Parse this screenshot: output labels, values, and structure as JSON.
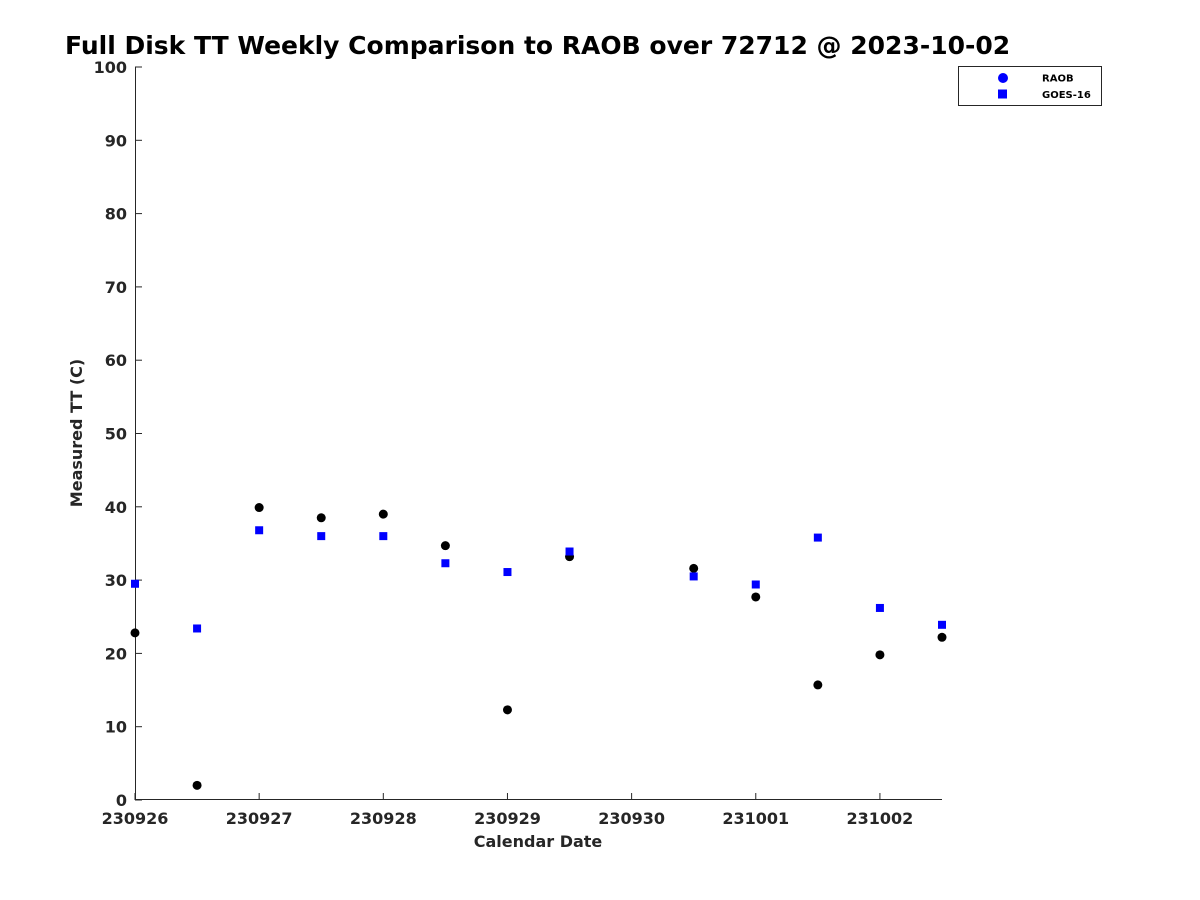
{
  "chart_data": {
    "type": "scatter",
    "title": "Full Disk TT Weekly Comparison to RAOB over 72712 @ 2023-10-02",
    "xlabel": "Calendar Date",
    "ylabel": "Measured TT (C)",
    "xlim": [
      0,
      6.5
    ],
    "ylim": [
      0,
      100
    ],
    "x_ticks": [
      {
        "pos": 0,
        "label": "230926"
      },
      {
        "pos": 1,
        "label": "230927"
      },
      {
        "pos": 2,
        "label": "230928"
      },
      {
        "pos": 3,
        "label": "230929"
      },
      {
        "pos": 4,
        "label": "230930"
      },
      {
        "pos": 5,
        "label": "231001"
      },
      {
        "pos": 6,
        "label": "231002"
      }
    ],
    "y_ticks": [
      "0",
      "10",
      "20",
      "30",
      "40",
      "50",
      "60",
      "70",
      "80",
      "90",
      "100"
    ],
    "grid": false,
    "legend_position": "top-right",
    "series": [
      {
        "name": "RAOB",
        "marker": "circle",
        "color": "#000000",
        "legend_color": "#0000ff",
        "points": [
          {
            "x": 0.0,
            "y": 22.8
          },
          {
            "x": 0.5,
            "y": 2.0
          },
          {
            "x": 1.0,
            "y": 39.9
          },
          {
            "x": 1.5,
            "y": 38.5
          },
          {
            "x": 2.0,
            "y": 39.0
          },
          {
            "x": 2.5,
            "y": 34.7
          },
          {
            "x": 3.0,
            "y": 12.3
          },
          {
            "x": 3.5,
            "y": 33.2
          },
          {
            "x": 4.5,
            "y": 31.6
          },
          {
            "x": 5.0,
            "y": 27.7
          },
          {
            "x": 5.5,
            "y": 15.7
          },
          {
            "x": 6.0,
            "y": 19.8
          },
          {
            "x": 6.5,
            "y": 22.2
          }
        ]
      },
      {
        "name": "GOES-16",
        "marker": "square",
        "color": "#0000ff",
        "legend_color": "#0000ff",
        "points": [
          {
            "x": 0.0,
            "y": 29.5
          },
          {
            "x": 0.5,
            "y": 23.4
          },
          {
            "x": 1.0,
            "y": 36.8
          },
          {
            "x": 1.5,
            "y": 36.0
          },
          {
            "x": 2.0,
            "y": 36.0
          },
          {
            "x": 2.5,
            "y": 32.3
          },
          {
            "x": 3.0,
            "y": 31.1
          },
          {
            "x": 3.5,
            "y": 33.9
          },
          {
            "x": 4.5,
            "y": 30.5
          },
          {
            "x": 5.0,
            "y": 29.4
          },
          {
            "x": 5.5,
            "y": 35.8
          },
          {
            "x": 6.0,
            "y": 26.2
          },
          {
            "x": 6.5,
            "y": 23.9
          }
        ]
      }
    ]
  }
}
